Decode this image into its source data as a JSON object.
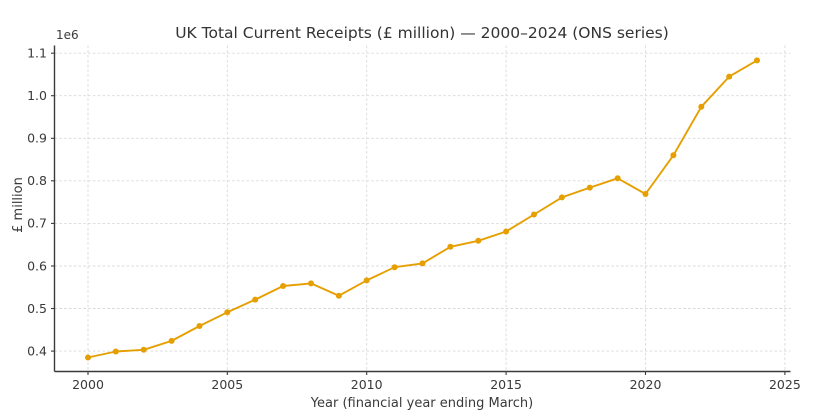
{
  "chart_data": {
    "type": "line",
    "title": "UK Total Current Receipts (£ million) — 2000–2024 (ONS series)",
    "xlabel": "Year (financial year ending March)",
    "ylabel": "£ million",
    "offset_text": "1e6",
    "x": [
      2000,
      2001,
      2002,
      2003,
      2004,
      2005,
      2006,
      2007,
      2008,
      2009,
      2010,
      2011,
      2012,
      2013,
      2014,
      2015,
      2016,
      2017,
      2018,
      2019,
      2020,
      2021,
      2022,
      2023,
      2024
    ],
    "values": [
      385000,
      399000,
      403000,
      424000,
      459000,
      491000,
      521000,
      553000,
      559000,
      530000,
      566000,
      597000,
      606000,
      645000,
      659000,
      681000,
      721000,
      761000,
      784000,
      806000,
      769000,
      860000,
      974000,
      1045000,
      1083000
    ],
    "xlim": [
      1998.8,
      2025.2
    ],
    "ylim": [
      352000,
      1118000
    ],
    "xticks": [
      2000,
      2005,
      2010,
      2015,
      2020,
      2025
    ],
    "xtick_labels": [
      "2000",
      "2005",
      "2010",
      "2015",
      "2020",
      "2025"
    ],
    "yticks": [
      400000,
      500000,
      600000,
      700000,
      800000,
      900000,
      1000000,
      1100000
    ],
    "ytick_labels": [
      "0.4",
      "0.5",
      "0.6",
      "0.7",
      "0.8",
      "0.9",
      "1.0",
      "1.1"
    ],
    "grid": true,
    "legend": "none",
    "line_color": "#E69F00",
    "marker": "circle",
    "grid_color": "#d9d9d9",
    "text_color": "#3a3a3a"
  }
}
